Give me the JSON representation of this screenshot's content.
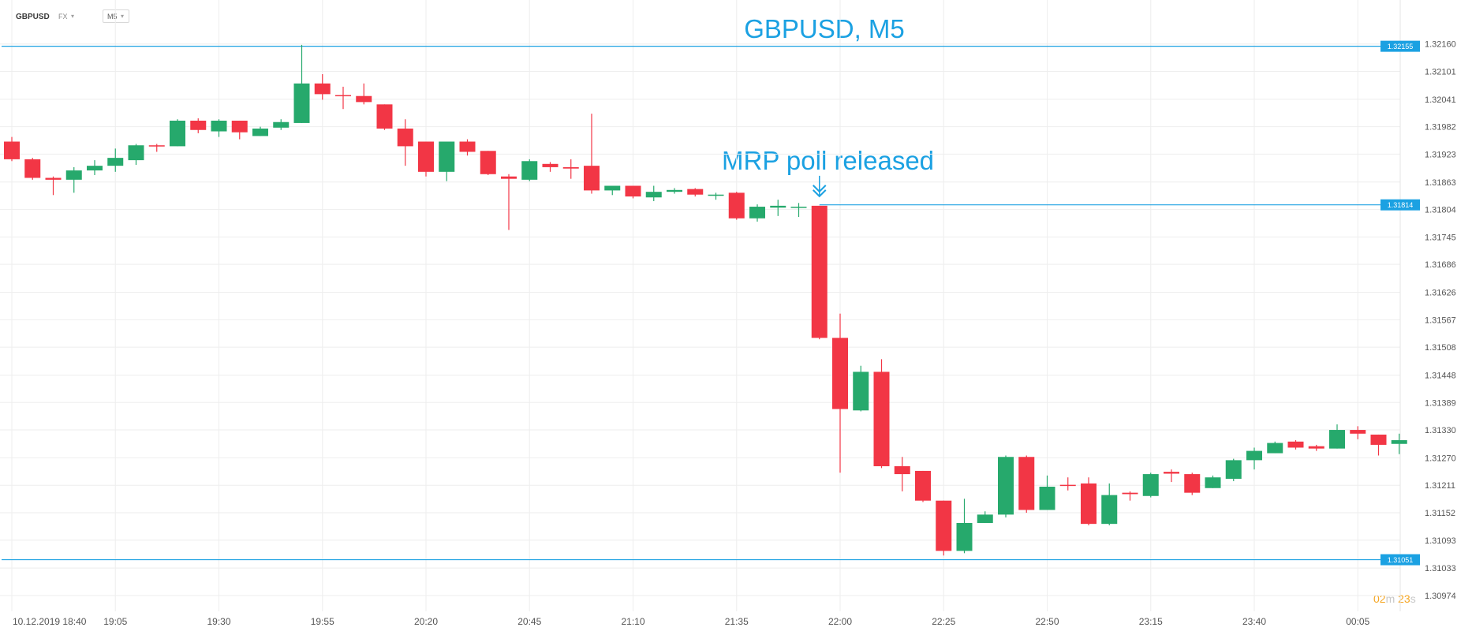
{
  "header": {
    "symbol": "GBPUSD",
    "market": "FX",
    "timeframe": "M5"
  },
  "chart_title": "GBPUSD, M5",
  "annotation": {
    "text": "MRP poll released",
    "arrow_icon": "double-chevron-down-icon"
  },
  "timer": {
    "minutes": "02",
    "min_unit": "m",
    "seconds": "23",
    "sec_unit": "s"
  },
  "colors": {
    "up": "#26a96c",
    "down": "#f23645",
    "line": "#1ba1e2",
    "grid": "#eeeeee",
    "axis_text": "#555555"
  },
  "chart_data": {
    "type": "candlestick",
    "title": "GBPUSD, M5",
    "ylim": [
      1.3094,
      1.3219
    ],
    "y_ticks": [
      "1.32160",
      "1.32101",
      "1.32041",
      "1.31982",
      "1.31923",
      "1.31863",
      "1.31804",
      "1.31745",
      "1.31686",
      "1.31626",
      "1.31567",
      "1.31508",
      "1.31448",
      "1.31389",
      "1.31330",
      "1.31270",
      "1.31211",
      "1.31152",
      "1.31093",
      "1.31033",
      "1.30974"
    ],
    "x_labels": [
      "10.12.2019  18:40",
      "19:05",
      "19:30",
      "19:55",
      "20:20",
      "20:45",
      "21:10",
      "21:35",
      "22:00",
      "22:25",
      "22:50",
      "23:15",
      "23:40",
      "00:05"
    ],
    "hlines": [
      {
        "label": "1.32155",
        "value": 1.32155
      },
      {
        "label": "1.31814",
        "value": 1.31814
      },
      {
        "label": "1.31051",
        "value": 1.31051
      }
    ],
    "annotation_candle": 39,
    "candles": [
      {
        "o": 1.3195,
        "h": 1.3196,
        "l": 1.31908,
        "c": 1.31912
      },
      {
        "o": 1.31912,
        "h": 1.31915,
        "l": 1.31868,
        "c": 1.31872
      },
      {
        "o": 1.31872,
        "h": 1.31875,
        "l": 1.31835,
        "c": 1.31868
      },
      {
        "o": 1.31868,
        "h": 1.31895,
        "l": 1.3184,
        "c": 1.31888
      },
      {
        "o": 1.31888,
        "h": 1.3191,
        "l": 1.31878,
        "c": 1.31898
      },
      {
        "o": 1.31898,
        "h": 1.31935,
        "l": 1.31885,
        "c": 1.31915
      },
      {
        "o": 1.3191,
        "h": 1.31945,
        "l": 1.319,
        "c": 1.31942
      },
      {
        "o": 1.31942,
        "h": 1.31945,
        "l": 1.31928,
        "c": 1.3194
      },
      {
        "o": 1.3194,
        "h": 1.31998,
        "l": 1.3194,
        "c": 1.31995
      },
      {
        "o": 1.31995,
        "h": 1.32,
        "l": 1.31968,
        "c": 1.31975
      },
      {
        "o": 1.31972,
        "h": 1.31998,
        "l": 1.3196,
        "c": 1.31995
      },
      {
        "o": 1.31995,
        "h": 1.31995,
        "l": 1.31955,
        "c": 1.3197
      },
      {
        "o": 1.31962,
        "h": 1.31982,
        "l": 1.31962,
        "c": 1.31978
      },
      {
        "o": 1.3198,
        "h": 1.31998,
        "l": 1.31975,
        "c": 1.31992
      },
      {
        "o": 1.3199,
        "h": 1.32158,
        "l": 1.3199,
        "c": 1.32075
      },
      {
        "o": 1.32075,
        "h": 1.32095,
        "l": 1.3204,
        "c": 1.32052
      },
      {
        "o": 1.3205,
        "h": 1.32068,
        "l": 1.3202,
        "c": 1.32048
      },
      {
        "o": 1.32048,
        "h": 1.32075,
        "l": 1.3203,
        "c": 1.32035
      },
      {
        "o": 1.3203,
        "h": 1.3203,
        "l": 1.31975,
        "c": 1.31978
      },
      {
        "o": 1.31978,
        "h": 1.31998,
        "l": 1.31898,
        "c": 1.3194
      },
      {
        "o": 1.3195,
        "h": 1.3195,
        "l": 1.31875,
        "c": 1.31885
      },
      {
        "o": 1.31885,
        "h": 1.3195,
        "l": 1.31865,
        "c": 1.3195
      },
      {
        "o": 1.3195,
        "h": 1.31955,
        "l": 1.3192,
        "c": 1.31928
      },
      {
        "o": 1.3193,
        "h": 1.3193,
        "l": 1.31878,
        "c": 1.3188
      },
      {
        "o": 1.31875,
        "h": 1.3188,
        "l": 1.3176,
        "c": 1.3187
      },
      {
        "o": 1.31868,
        "h": 1.31912,
        "l": 1.31865,
        "c": 1.31908
      },
      {
        "o": 1.31902,
        "h": 1.31906,
        "l": 1.31885,
        "c": 1.31895
      },
      {
        "o": 1.31895,
        "h": 1.31912,
        "l": 1.3187,
        "c": 1.31892
      },
      {
        "o": 1.31898,
        "h": 1.3201,
        "l": 1.31838,
        "c": 1.31845
      },
      {
        "o": 1.31845,
        "h": 1.3185,
        "l": 1.31835,
        "c": 1.31855
      },
      {
        "o": 1.31855,
        "h": 1.31855,
        "l": 1.31828,
        "c": 1.31832
      },
      {
        "o": 1.3183,
        "h": 1.31855,
        "l": 1.31822,
        "c": 1.31842
      },
      {
        "o": 1.31842,
        "h": 1.3185,
        "l": 1.31838,
        "c": 1.31846
      },
      {
        "o": 1.31848,
        "h": 1.3185,
        "l": 1.31832,
        "c": 1.31836
      },
      {
        "o": 1.31834,
        "h": 1.3184,
        "l": 1.31825,
        "c": 1.31836
      },
      {
        "o": 1.3184,
        "h": 1.31842,
        "l": 1.31782,
        "c": 1.31785
      },
      {
        "o": 1.31785,
        "h": 1.31815,
        "l": 1.31778,
        "c": 1.3181
      },
      {
        "o": 1.31808,
        "h": 1.31825,
        "l": 1.3179,
        "c": 1.31812
      },
      {
        "o": 1.3181,
        "h": 1.31818,
        "l": 1.31788,
        "c": 1.3181
      },
      {
        "o": 1.31812,
        "h": 1.31812,
        "l": 1.31525,
        "c": 1.31528
      },
      {
        "o": 1.31528,
        "h": 1.3158,
        "l": 1.31238,
        "c": 1.31375
      },
      {
        "o": 1.31372,
        "h": 1.31468,
        "l": 1.3137,
        "c": 1.31455
      },
      {
        "o": 1.31455,
        "h": 1.31482,
        "l": 1.31248,
        "c": 1.31252
      },
      {
        "o": 1.31252,
        "h": 1.31272,
        "l": 1.31198,
        "c": 1.31235
      },
      {
        "o": 1.31242,
        "h": 1.31242,
        "l": 1.31175,
        "c": 1.31178
      },
      {
        "o": 1.31178,
        "h": 1.31178,
        "l": 1.3106,
        "c": 1.3107
      },
      {
        "o": 1.3107,
        "h": 1.31182,
        "l": 1.31065,
        "c": 1.3113
      },
      {
        "o": 1.3113,
        "h": 1.31155,
        "l": 1.3113,
        "c": 1.31148
      },
      {
        "o": 1.31148,
        "h": 1.31275,
        "l": 1.31142,
        "c": 1.31272
      },
      {
        "o": 1.31272,
        "h": 1.31275,
        "l": 1.31152,
        "c": 1.31158
      },
      {
        "o": 1.31158,
        "h": 1.31232,
        "l": 1.31158,
        "c": 1.31208
      },
      {
        "o": 1.31212,
        "h": 1.31228,
        "l": 1.312,
        "c": 1.3121
      },
      {
        "o": 1.31215,
        "h": 1.31228,
        "l": 1.31125,
        "c": 1.31128
      },
      {
        "o": 1.31128,
        "h": 1.31215,
        "l": 1.31125,
        "c": 1.3119
      },
      {
        "o": 1.31195,
        "h": 1.31198,
        "l": 1.31178,
        "c": 1.31192
      },
      {
        "o": 1.31188,
        "h": 1.31238,
        "l": 1.31185,
        "c": 1.31235
      },
      {
        "o": 1.3124,
        "h": 1.31245,
        "l": 1.31218,
        "c": 1.31236
      },
      {
        "o": 1.31235,
        "h": 1.31238,
        "l": 1.3119,
        "c": 1.31195
      },
      {
        "o": 1.31205,
        "h": 1.31232,
        "l": 1.31205,
        "c": 1.31228
      },
      {
        "o": 1.31225,
        "h": 1.31268,
        "l": 1.3122,
        "c": 1.31265
      },
      {
        "o": 1.31265,
        "h": 1.31292,
        "l": 1.31245,
        "c": 1.31285
      },
      {
        "o": 1.3128,
        "h": 1.31305,
        "l": 1.3128,
        "c": 1.31302
      },
      {
        "o": 1.31305,
        "h": 1.31308,
        "l": 1.31288,
        "c": 1.31292
      },
      {
        "o": 1.31295,
        "h": 1.31298,
        "l": 1.31285,
        "c": 1.3129
      },
      {
        "o": 1.3129,
        "h": 1.31342,
        "l": 1.3129,
        "c": 1.3133
      },
      {
        "o": 1.3133,
        "h": 1.31338,
        "l": 1.3131,
        "c": 1.31322
      },
      {
        "o": 1.3132,
        "h": 1.3132,
        "l": 1.31275,
        "c": 1.31298
      },
      {
        "o": 1.313,
        "h": 1.31322,
        "l": 1.31278,
        "c": 1.31308
      }
    ]
  }
}
